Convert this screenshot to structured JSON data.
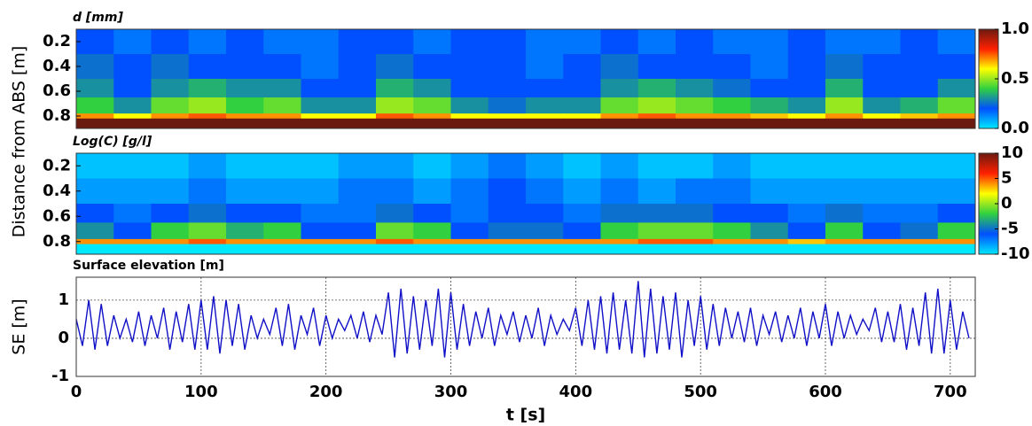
{
  "chart_data": [
    {
      "type": "heatmap",
      "title": "d [mm]",
      "ylabel": "Distance from ABS [m]",
      "xlim": [
        0,
        720
      ],
      "xbins": [
        0,
        30,
        60,
        90,
        120,
        150,
        180,
        210,
        240,
        270,
        300,
        330,
        360,
        390,
        420,
        450,
        480,
        510,
        540,
        570,
        600,
        630,
        660,
        690,
        720
      ],
      "ylim": [
        0.1,
        0.9
      ],
      "ybins": [
        0.1,
        0.3,
        0.5,
        0.65,
        0.78,
        0.82,
        0.9
      ],
      "yticks": [
        0.2,
        0.4,
        0.6,
        0.8
      ],
      "zlim": [
        0,
        1
      ],
      "cticks": [
        {
          "value": 0,
          "label": "0.0"
        },
        {
          "value": 0.5,
          "label": "0.5"
        },
        {
          "value": 1,
          "label": "1.0"
        }
      ],
      "colors": [
        "#00e8ff",
        "#0050ff",
        "#30d040",
        "#ffff00",
        "#ff2000",
        "#6b1a10"
      ],
      "z": [
        [
          0.2,
          0.15,
          0.2,
          0.15,
          0.2,
          0.15,
          0.15,
          0.2,
          0.2,
          0.15,
          0.2,
          0.2,
          0.15,
          0.15,
          0.2,
          0.15,
          0.2,
          0.15,
          0.15,
          0.2,
          0.15,
          0.15,
          0.2,
          0.15
        ],
        [
          0.25,
          0.2,
          0.25,
          0.2,
          0.2,
          0.2,
          0.15,
          0.2,
          0.25,
          0.2,
          0.2,
          0.2,
          0.15,
          0.2,
          0.25,
          0.2,
          0.2,
          0.2,
          0.15,
          0.2,
          0.25,
          0.2,
          0.2,
          0.2
        ],
        [
          0.3,
          0.2,
          0.3,
          0.35,
          0.3,
          0.3,
          0.2,
          0.2,
          0.35,
          0.3,
          0.2,
          0.2,
          0.2,
          0.2,
          0.3,
          0.35,
          0.3,
          0.25,
          0.2,
          0.2,
          0.35,
          0.2,
          0.2,
          0.3
        ],
        [
          0.4,
          0.3,
          0.45,
          0.5,
          0.4,
          0.45,
          0.3,
          0.3,
          0.5,
          0.45,
          0.3,
          0.25,
          0.3,
          0.3,
          0.45,
          0.5,
          0.45,
          0.4,
          0.35,
          0.3,
          0.5,
          0.3,
          0.35,
          0.45
        ],
        [
          0.7,
          0.6,
          0.7,
          0.75,
          0.7,
          0.7,
          0.6,
          0.6,
          0.75,
          0.7,
          0.6,
          0.6,
          0.6,
          0.6,
          0.7,
          0.75,
          0.7,
          0.7,
          0.65,
          0.6,
          0.7,
          0.6,
          0.65,
          0.7
        ],
        [
          1,
          1,
          1,
          1,
          1,
          1,
          1,
          1,
          1,
          1,
          1,
          1,
          1,
          1,
          1,
          1,
          1,
          1,
          1,
          1,
          1,
          1,
          1,
          1
        ]
      ]
    },
    {
      "type": "heatmap",
      "title": "Log(C) [g/l]",
      "xlim": [
        0,
        720
      ],
      "xbins": [
        0,
        30,
        60,
        90,
        120,
        150,
        180,
        210,
        240,
        270,
        300,
        330,
        360,
        390,
        420,
        450,
        480,
        510,
        540,
        570,
        600,
        630,
        660,
        690,
        720
      ],
      "ylim": [
        0.1,
        0.9
      ],
      "ybins": [
        0.1,
        0.3,
        0.5,
        0.65,
        0.78,
        0.82,
        0.9
      ],
      "yticks": [
        0.2,
        0.4,
        0.6,
        0.8
      ],
      "zlim": [
        -10,
        10
      ],
      "cticks": [
        -10,
        -5,
        0,
        5,
        10
      ],
      "colors": [
        "#00e8ff",
        "#0050ff",
        "#30d040",
        "#ffff00",
        "#ff2000",
        "#6b1a10"
      ],
      "z": [
        [
          -9,
          -9,
          -9,
          -8,
          -9,
          -9,
          -9,
          -8,
          -8,
          -9,
          -8,
          -7,
          -8,
          -9,
          -8,
          -9,
          -9,
          -8,
          -9,
          -9,
          -9,
          -9,
          -9,
          -9
        ],
        [
          -8,
          -8,
          -8,
          -7,
          -8,
          -8,
          -8,
          -7,
          -7,
          -8,
          -7,
          -6,
          -7,
          -8,
          -7,
          -8,
          -7,
          -7,
          -8,
          -8,
          -8,
          -8,
          -8,
          -8
        ],
        [
          -6,
          -7,
          -6,
          -5,
          -6,
          -6,
          -7,
          -7,
          -5,
          -6,
          -7,
          -6,
          -6,
          -7,
          -5,
          -5,
          -5,
          -6,
          -6,
          -7,
          -5,
          -7,
          -7,
          -6
        ],
        [
          -4,
          -6,
          -2,
          -1,
          -3,
          -2,
          -6,
          -6,
          -1,
          -2,
          -6,
          -5,
          -5,
          -6,
          -2,
          -1,
          -1,
          -2,
          -4,
          -6,
          -2,
          -6,
          -5,
          -2
        ],
        [
          4,
          4,
          4,
          5,
          4,
          4,
          4,
          4,
          5,
          4,
          4,
          4,
          4,
          4,
          4,
          5,
          5,
          4,
          4,
          3,
          4,
          4,
          4,
          4
        ],
        [
          -10,
          -10,
          -10,
          -10,
          -10,
          -10,
          -10,
          -10,
          -10,
          -10,
          -10,
          -10,
          -10,
          -10,
          -10,
          -10,
          -10,
          -10,
          -10,
          -10,
          -10,
          -10,
          -10,
          -10
        ]
      ]
    },
    {
      "type": "line",
      "title": "Surface elevation [m]",
      "ylabel": "SE [m]",
      "xlabel": "t [s]",
      "xlim": [
        0,
        720
      ],
      "xticks": [
        0,
        100,
        200,
        300,
        400,
        500,
        600,
        700
      ],
      "ylim": [
        -1,
        1.6
      ],
      "yticks": [
        -1,
        0,
        1
      ],
      "grid": true,
      "color": "#1010c8",
      "x": [
        0,
        5,
        10,
        15,
        20,
        25,
        30,
        35,
        40,
        45,
        50,
        55,
        60,
        65,
        70,
        75,
        80,
        85,
        90,
        95,
        100,
        105,
        110,
        115,
        120,
        125,
        130,
        135,
        140,
        145,
        150,
        155,
        160,
        165,
        170,
        175,
        180,
        185,
        190,
        195,
        200,
        205,
        210,
        215,
        220,
        225,
        230,
        235,
        240,
        245,
        250,
        255,
        260,
        265,
        270,
        275,
        280,
        285,
        290,
        295,
        300,
        305,
        310,
        315,
        320,
        325,
        330,
        335,
        340,
        345,
        350,
        355,
        360,
        365,
        370,
        375,
        380,
        385,
        390,
        395,
        400,
        405,
        410,
        415,
        420,
        425,
        430,
        435,
        440,
        445,
        450,
        455,
        460,
        465,
        470,
        475,
        480,
        485,
        490,
        495,
        500,
        505,
        510,
        515,
        520,
        525,
        530,
        535,
        540,
        545,
        550,
        555,
        560,
        565,
        570,
        575,
        580,
        585,
        590,
        595,
        600,
        605,
        610,
        615,
        620,
        625,
        630,
        635,
        640,
        645,
        650,
        655,
        660,
        665,
        670,
        675,
        680,
        685,
        690,
        695,
        700,
        705,
        710,
        715
      ],
      "values": [
        0.5,
        -0.2,
        1.0,
        -0.3,
        0.9,
        -0.2,
        0.6,
        0.0,
        0.5,
        -0.1,
        0.7,
        -0.2,
        0.6,
        0.0,
        0.8,
        -0.3,
        0.7,
        -0.1,
        0.9,
        -0.3,
        1.0,
        -0.3,
        1.1,
        -0.4,
        1.0,
        -0.2,
        0.9,
        -0.3,
        0.6,
        0.0,
        0.5,
        0.1,
        0.8,
        -0.2,
        0.9,
        -0.3,
        0.6,
        0.1,
        0.8,
        -0.2,
        0.6,
        0.0,
        0.5,
        0.2,
        0.6,
        0.0,
        0.7,
        -0.1,
        0.6,
        0.1,
        1.2,
        -0.5,
        1.3,
        -0.4,
        1.1,
        -0.3,
        1.0,
        -0.2,
        1.3,
        -0.5,
        1.2,
        -0.3,
        0.9,
        -0.2,
        0.7,
        0.0,
        0.8,
        -0.2,
        0.6,
        0.1,
        0.7,
        -0.1,
        0.6,
        0.0,
        0.8,
        -0.2,
        0.6,
        0.1,
        0.5,
        0.2,
        0.8,
        -0.2,
        1.0,
        -0.3,
        1.1,
        -0.4,
        1.2,
        -0.3,
        1.0,
        -0.4,
        1.5,
        -0.5,
        1.3,
        -0.4,
        1.1,
        -0.3,
        1.2,
        -0.5,
        1.0,
        -0.2,
        1.1,
        -0.3,
        0.9,
        -0.2,
        0.8,
        0.0,
        0.7,
        -0.1,
        0.8,
        -0.2,
        0.6,
        0.1,
        0.7,
        -0.1,
        0.6,
        0.0,
        0.8,
        -0.2,
        0.7,
        0.0,
        0.9,
        -0.2,
        0.7,
        0.0,
        0.6,
        0.1,
        0.5,
        0.2,
        0.8,
        -0.1,
        0.7,
        -0.1,
        0.9,
        -0.3,
        0.8,
        -0.2,
        1.2,
        -0.4,
        1.3,
        -0.4,
        1.0,
        -0.3,
        0.7,
        0.0
      ]
    }
  ]
}
